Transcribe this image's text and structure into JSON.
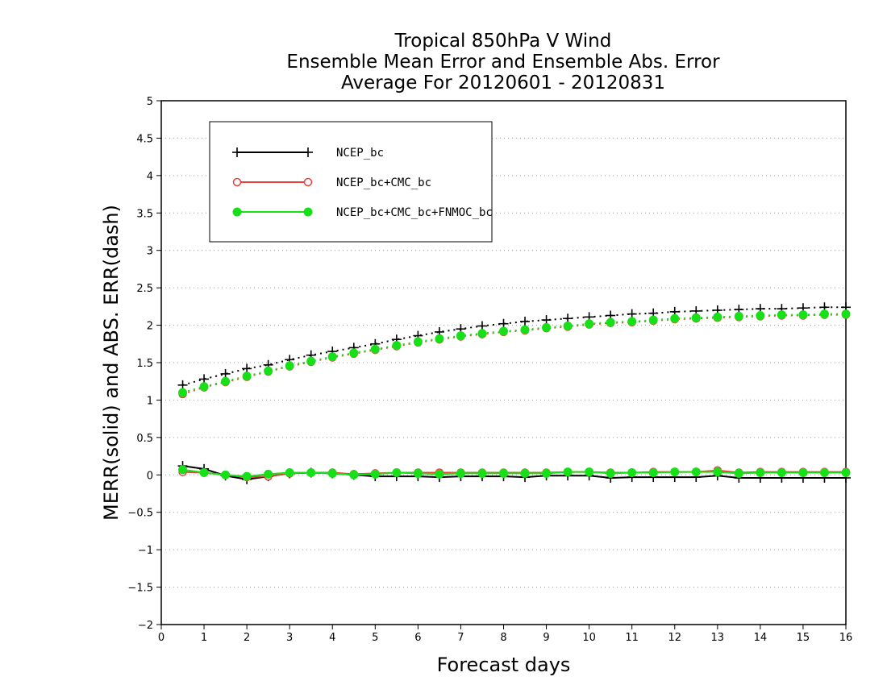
{
  "chart_data": {
    "type": "line",
    "title": [
      "Tropical 850hPa V Wind",
      "Ensemble Mean Error and Ensemble Abs. Error",
      "Average For 20120601 - 20120831"
    ],
    "xlabel": "Forecast days",
    "ylabel": "MERR(solid) and ABS. ERR(dash)",
    "xlim": [
      0,
      16
    ],
    "ylim": [
      -2,
      5
    ],
    "x_ticks": [
      0,
      1,
      2,
      3,
      4,
      5,
      6,
      7,
      8,
      9,
      10,
      11,
      12,
      13,
      14,
      15,
      16
    ],
    "y_ticks": [
      -2,
      -1.5,
      -1,
      -0.5,
      0,
      0.5,
      1,
      1.5,
      2,
      2.5,
      3,
      3.5,
      4,
      4.5,
      5
    ],
    "grid": "horizontal dotted",
    "legend_position": "top-left",
    "x": [
      0.5,
      1,
      1.5,
      2,
      2.5,
      3,
      3.5,
      4,
      4.5,
      5,
      5.5,
      6,
      6.5,
      7,
      7.5,
      8,
      8.5,
      9,
      9.5,
      10,
      10.5,
      11,
      11.5,
      12,
      12.5,
      13,
      13.5,
      14,
      14.5,
      15,
      15.5,
      16
    ],
    "series": [
      {
        "name": "NCEP_bc",
        "color": "#000000",
        "marker": "plus",
        "merr": [
          0.12,
          0.08,
          -0.01,
          -0.06,
          -0.02,
          0.02,
          0.03,
          0.02,
          0.0,
          -0.02,
          -0.02,
          -0.02,
          -0.03,
          -0.02,
          -0.02,
          -0.02,
          -0.03,
          -0.01,
          -0.01,
          -0.01,
          -0.04,
          -0.03,
          -0.03,
          -0.03,
          -0.03,
          -0.01,
          -0.04,
          -0.04,
          -0.04,
          -0.04,
          -0.04,
          -0.04
        ],
        "abs_err": [
          1.2,
          1.28,
          1.35,
          1.42,
          1.47,
          1.54,
          1.6,
          1.65,
          1.7,
          1.75,
          1.81,
          1.86,
          1.91,
          1.95,
          1.99,
          2.02,
          2.05,
          2.07,
          2.09,
          2.11,
          2.13,
          2.15,
          2.16,
          2.18,
          2.19,
          2.2,
          2.21,
          2.22,
          2.22,
          2.23,
          2.24,
          2.24
        ]
      },
      {
        "name": "NCEP_bc+CMC_bc",
        "color": "#e8413a",
        "marker": "open-circle",
        "merr": [
          0.04,
          0.03,
          0.0,
          -0.03,
          -0.02,
          0.02,
          0.03,
          0.03,
          0.01,
          0.02,
          0.03,
          0.03,
          0.03,
          0.03,
          0.03,
          0.03,
          0.03,
          0.03,
          0.04,
          0.04,
          0.03,
          0.03,
          0.04,
          0.04,
          0.04,
          0.06,
          0.03,
          0.04,
          0.04,
          0.04,
          0.04,
          0.04
        ],
        "abs_err": [
          1.08,
          1.17,
          1.24,
          1.31,
          1.38,
          1.45,
          1.51,
          1.57,
          1.62,
          1.67,
          1.72,
          1.77,
          1.81,
          1.85,
          1.88,
          1.91,
          1.93,
          1.96,
          1.98,
          2.01,
          2.03,
          2.04,
          2.06,
          2.08,
          2.09,
          2.1,
          2.11,
          2.12,
          2.13,
          2.13,
          2.14,
          2.14
        ]
      },
      {
        "name": "NCEP_bc+CMC_bc+FNMOC_bc",
        "color": "#18e018",
        "marker": "filled-circle",
        "merr": [
          0.07,
          0.03,
          0.0,
          -0.02,
          0.01,
          0.03,
          0.03,
          0.02,
          0.0,
          0.01,
          0.03,
          0.02,
          0.01,
          0.02,
          0.02,
          0.02,
          0.02,
          0.02,
          0.04,
          0.04,
          0.02,
          0.03,
          0.03,
          0.04,
          0.04,
          0.04,
          0.02,
          0.03,
          0.03,
          0.03,
          0.03,
          0.03
        ],
        "abs_err": [
          1.1,
          1.18,
          1.25,
          1.32,
          1.39,
          1.46,
          1.52,
          1.58,
          1.63,
          1.68,
          1.73,
          1.78,
          1.82,
          1.86,
          1.89,
          1.92,
          1.94,
          1.97,
          1.99,
          2.02,
          2.04,
          2.05,
          2.07,
          2.09,
          2.1,
          2.11,
          2.12,
          2.13,
          2.14,
          2.14,
          2.15,
          2.15
        ]
      }
    ]
  }
}
